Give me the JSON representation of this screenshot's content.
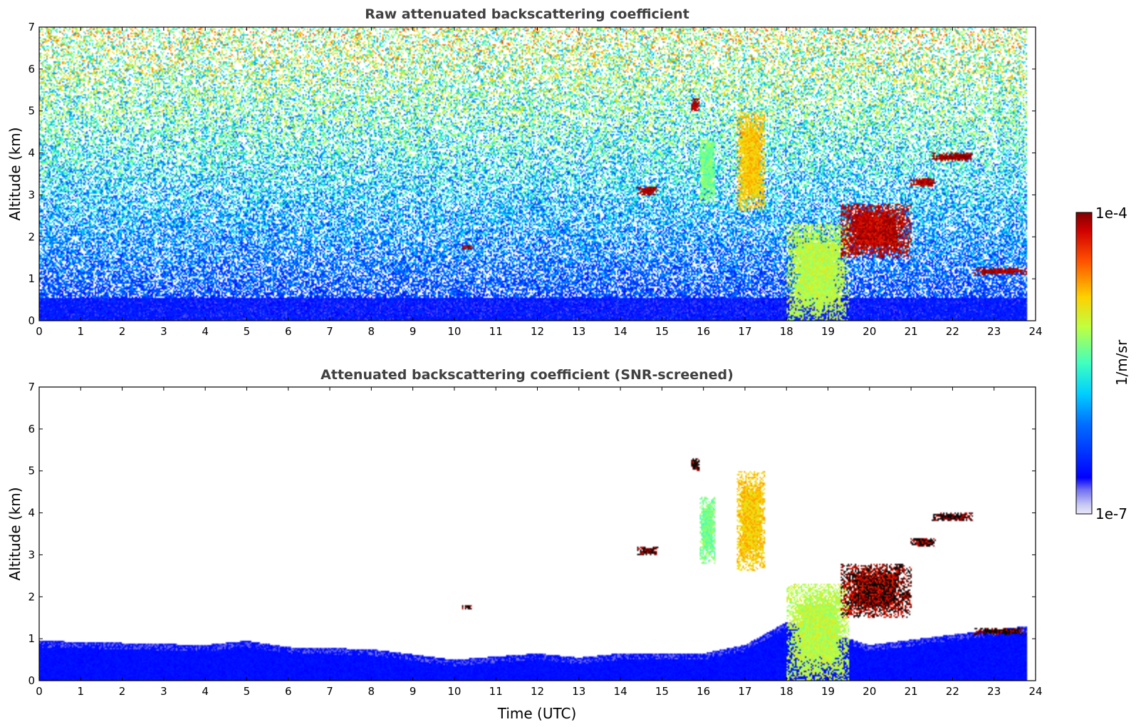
{
  "chart_data": [
    {
      "type": "heatmap",
      "title": "Raw attenuated backscattering coefficient",
      "xlabel": "",
      "ylabel": "Altitude (km)",
      "xlim": [
        0,
        24
      ],
      "ylim": [
        0,
        7
      ],
      "xticks": [
        0,
        1,
        2,
        3,
        4,
        5,
        6,
        7,
        8,
        9,
        10,
        11,
        12,
        13,
        14,
        15,
        16,
        17,
        18,
        19,
        20,
        21,
        22,
        23,
        24
      ],
      "yticks": [
        0,
        1,
        2,
        3,
        4,
        5,
        6,
        7
      ],
      "grid": false,
      "data_end_time": 23.8,
      "background": "noisy backscatter field increasing in noise with altitude",
      "features": [
        {
          "name": "boundary layer",
          "x0": 0,
          "x1": 23.8,
          "y0": 0,
          "y1": 0.55,
          "level": 0.15
        },
        {
          "name": "low cloud 10.3h",
          "x0": 10.2,
          "x1": 10.45,
          "y0": 1.7,
          "y1": 1.8,
          "level": 0.98
        },
        {
          "name": "cloud 14.6h",
          "x0": 14.4,
          "x1": 14.9,
          "y0": 3.0,
          "y1": 3.2,
          "level": 0.98
        },
        {
          "name": "cloud 15.8h",
          "x0": 15.7,
          "x1": 15.9,
          "y0": 5.0,
          "y1": 5.3,
          "level": 0.98
        },
        {
          "name": "ice plume 16h",
          "x0": 15.9,
          "x1": 16.3,
          "y0": 2.8,
          "y1": 4.4,
          "level": 0.55
        },
        {
          "name": "ice plume 17h",
          "x0": 16.8,
          "x1": 17.5,
          "y0": 2.6,
          "y1": 5.0,
          "level": 0.72
        },
        {
          "name": "convective column 18-19h",
          "x0": 18.0,
          "x1": 19.5,
          "y0": 0.0,
          "y1": 2.3,
          "level": 0.62
        },
        {
          "name": "cloud deck 19.3-21h",
          "x0": 19.3,
          "x1": 21.0,
          "y0": 1.5,
          "y1": 2.8,
          "level": 0.95
        },
        {
          "name": "cloud 21.3h",
          "x0": 21.0,
          "x1": 21.6,
          "y0": 3.2,
          "y1": 3.4,
          "level": 0.96
        },
        {
          "name": "cloud 22h",
          "x0": 21.5,
          "x1": 22.5,
          "y0": 3.8,
          "y1": 4.0,
          "level": 0.98
        },
        {
          "name": "low cloud 22.5-23.8h",
          "x0": 22.5,
          "x1": 23.8,
          "y0": 1.1,
          "y1": 1.25,
          "level": 0.98
        }
      ]
    },
    {
      "type": "heatmap",
      "title": "Attenuated backscattering coefficient (SNR-screened)",
      "xlabel": "Time (UTC)",
      "ylabel": "Altitude (km)",
      "xlim": [
        0,
        24
      ],
      "ylim": [
        0,
        7
      ],
      "xticks": [
        0,
        1,
        2,
        3,
        4,
        5,
        6,
        7,
        8,
        9,
        10,
        11,
        12,
        13,
        14,
        15,
        16,
        17,
        18,
        19,
        20,
        21,
        22,
        23,
        24
      ],
      "yticks": [
        0,
        1,
        2,
        3,
        4,
        5,
        6,
        7
      ],
      "grid": false,
      "data_end_time": 23.8,
      "background": "white (screened)",
      "boundary_layer_top_km": [
        [
          0,
          0.95
        ],
        [
          2,
          0.9
        ],
        [
          4,
          0.85
        ],
        [
          5,
          0.95
        ],
        [
          6,
          0.8
        ],
        [
          8,
          0.75
        ],
        [
          10,
          0.5
        ],
        [
          12,
          0.65
        ],
        [
          13,
          0.55
        ],
        [
          14,
          0.65
        ],
        [
          16,
          0.65
        ],
        [
          17,
          0.85
        ],
        [
          18,
          1.4
        ],
        [
          19.5,
          1.0
        ],
        [
          20,
          0.85
        ],
        [
          22,
          1.1
        ],
        [
          23.8,
          1.3
        ]
      ]
    }
  ],
  "colorbar": {
    "label": "1/m/sr",
    "min_label": "1e-7",
    "max_label": "1e-4",
    "scale": "log",
    "colormap": "jet"
  }
}
